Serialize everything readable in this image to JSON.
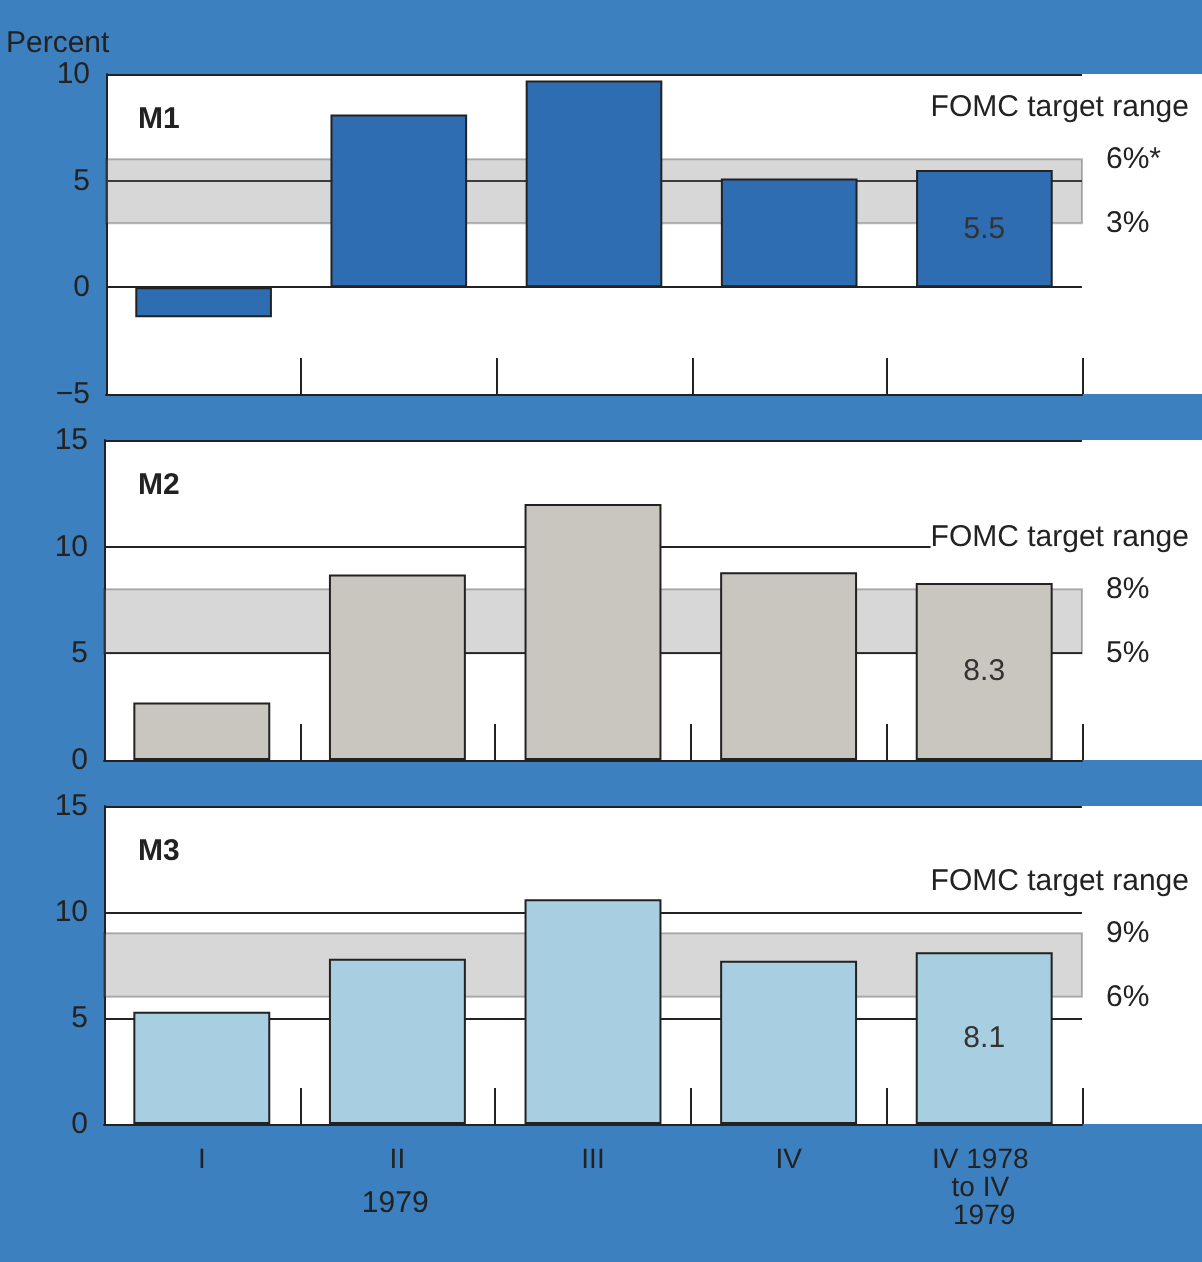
{
  "chart_data": [
    {
      "type": "bar",
      "title": "M1",
      "ylabel": "Percent",
      "categories": [
        "I",
        "II",
        "III",
        "IV",
        "IV 1978 to IV 1979"
      ],
      "series": [
        {
          "color": "#2f6db3",
          "values": [
            -1.4,
            8.1,
            9.7,
            5.1,
            5.5
          ],
          "value_labels": [
            null,
            null,
            null,
            null,
            "5.5"
          ]
        }
      ],
      "ylim": [
        -5,
        10
      ],
      "yticks": [
        {
          "value": -5,
          "label": "−5"
        },
        0,
        5,
        10
      ],
      "grid": "y",
      "tick_labels": "y",
      "bands": [
        {
          "axis": "y",
          "from": 3,
          "to": 6,
          "label": "FOMC target range",
          "color": "#7a7a7a"
        }
      ],
      "annotations": [
        "6%*",
        "3%"
      ]
    },
    {
      "type": "bar",
      "title": "M2",
      "categories": [
        "I",
        "II",
        "III",
        "IV",
        "IV 1978 to IV 1979"
      ],
      "series": [
        {
          "color": "#c9c6c0",
          "values": [
            2.7,
            8.7,
            12.0,
            8.8,
            8.3
          ],
          "value_labels": [
            null,
            null,
            null,
            null,
            "8.3"
          ]
        }
      ],
      "ylim": [
        0,
        15
      ],
      "yticks": [
        0,
        5,
        10,
        15
      ],
      "grid": "y",
      "tick_labels": "y",
      "bands": [
        {
          "axis": "y",
          "from": 5,
          "to": 8,
          "label": "FOMC target range",
          "color": "#7a7a7a"
        }
      ],
      "annotations": [
        "8%",
        "5%"
      ]
    },
    {
      "type": "bar",
      "title": "M3",
      "categories": [
        "I",
        "II",
        "III",
        "IV",
        "IV 1978 to IV 1979"
      ],
      "series": [
        {
          "color": "#a8cfe1",
          "values": [
            5.3,
            7.8,
            10.6,
            7.7,
            8.1
          ],
          "value_labels": [
            null,
            null,
            null,
            null,
            "8.1"
          ]
        }
      ],
      "ylim": [
        0,
        15
      ],
      "yticks": [
        0,
        5,
        10,
        15
      ],
      "grid": "y",
      "bands": [
        {
          "axis": "y",
          "from": 6,
          "to": 9,
          "label": "FOMC target range",
          "color": "#7a7a7a"
        }
      ],
      "annotations": [
        "9%",
        "6%",
        "1979"
      ]
    }
  ]
}
